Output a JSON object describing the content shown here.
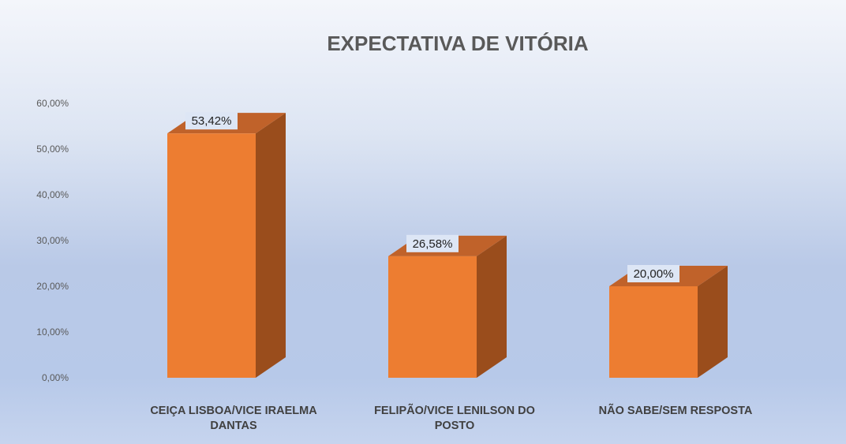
{
  "chart_data": {
    "type": "bar",
    "title": "EXPECTATIVA DE VITÓRIA",
    "categories": [
      [
        "CEIÇA LISBOA/VICE IRAELMA",
        "DANTAS"
      ],
      [
        "FELIPÃO/VICE LENILSON DO",
        "POSTO"
      ],
      [
        "NÃO SABE/SEM RESPOSTA"
      ]
    ],
    "values": [
      53.42,
      26.58,
      20.0
    ],
    "data_labels": [
      "53,42%",
      "26,58%",
      "20,00%"
    ],
    "y_ticks": [
      "0,00%",
      "10,00%",
      "20,00%",
      "30,00%",
      "40,00%",
      "50,00%",
      "60,00%"
    ],
    "ylim": [
      0,
      60
    ],
    "xlabel": "",
    "ylabel": "",
    "grid": false,
    "legend": "none",
    "style": "3d-column",
    "colors": {
      "front": "#ed7d31",
      "side": "#9a4d1c",
      "top": "#c0622a",
      "label_bg": "#dde6f5"
    }
  }
}
